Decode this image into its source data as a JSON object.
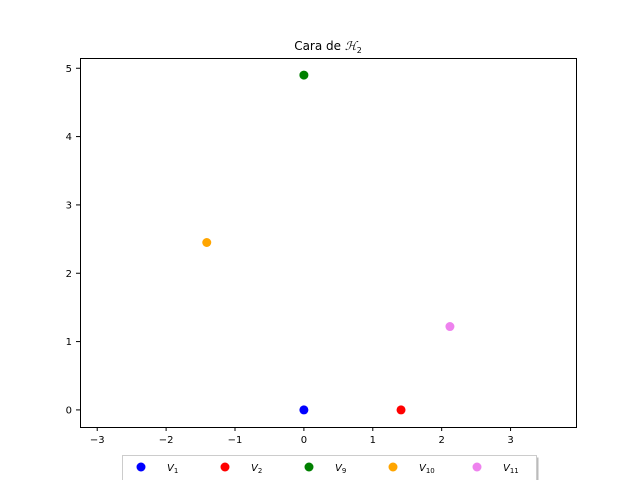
{
  "chart_data": {
    "type": "scatter",
    "title_prefix": "Cara de ",
    "title_symbol": "ℋ",
    "title_subscript": "2",
    "xlabel": "",
    "ylabel": "",
    "xlim": [
      -3.25,
      3.95
    ],
    "ylim": [
      -0.25,
      5.15
    ],
    "xticks": [
      -3,
      -2,
      -1,
      0,
      1,
      2,
      3
    ],
    "xtick_labels": [
      "−3",
      "−2",
      "−1",
      "0",
      "1",
      "2",
      "3"
    ],
    "yticks": [
      0,
      1,
      2,
      3,
      4,
      5
    ],
    "ytick_labels": [
      "0",
      "1",
      "2",
      "3",
      "4",
      "5"
    ],
    "grid": false,
    "legend_placement": "bottom-center",
    "series": [
      {
        "name": "V",
        "subscript": "1",
        "color": "#0000ff",
        "x": [
          0.0
        ],
        "y": [
          0.0
        ]
      },
      {
        "name": "V",
        "subscript": "2",
        "color": "#ff0000",
        "x": [
          1.41
        ],
        "y": [
          0.0
        ]
      },
      {
        "name": "V",
        "subscript": "9",
        "color": "#008000",
        "x": [
          0.0
        ],
        "y": [
          4.9
        ]
      },
      {
        "name": "V",
        "subscript": "10",
        "color": "#ffa500",
        "x": [
          -1.41
        ],
        "y": [
          2.45
        ]
      },
      {
        "name": "V",
        "subscript": "11",
        "color": "#ee82ee",
        "x": [
          2.12
        ],
        "y": [
          1.22
        ]
      }
    ]
  }
}
